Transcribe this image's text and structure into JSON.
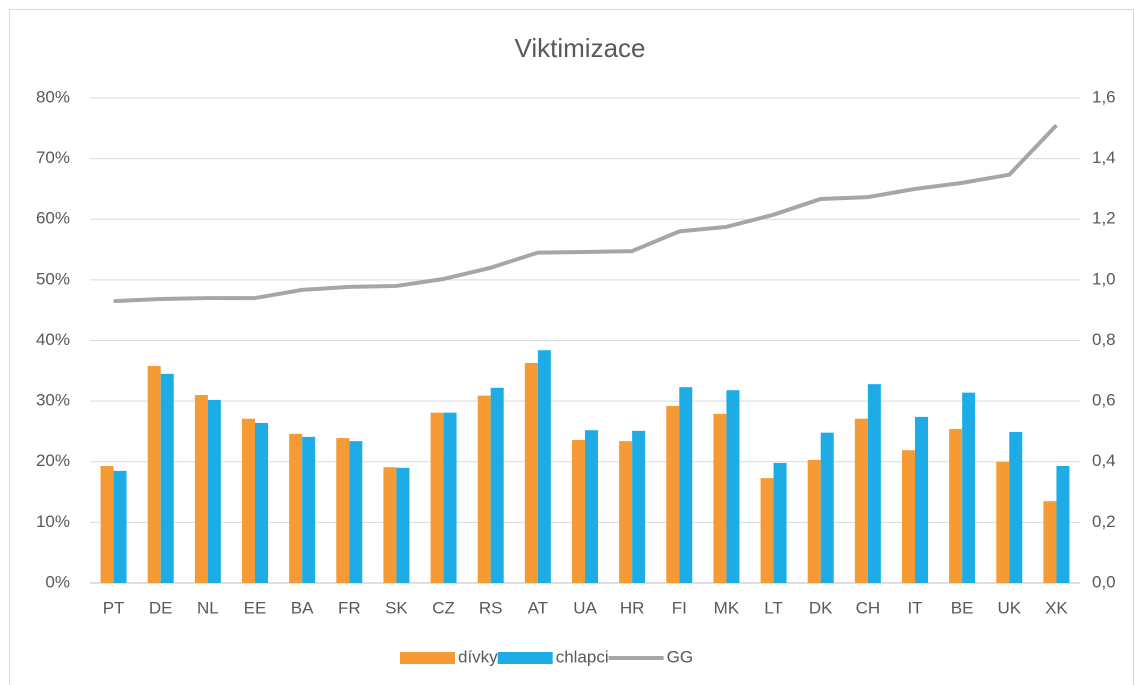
{
  "chart_data": {
    "type": "bar",
    "title": "Viktimizace",
    "categories": [
      "PT",
      "DE",
      "NL",
      "EE",
      "BA",
      "FR",
      "SK",
      "CZ",
      "RS",
      "AT",
      "UA",
      "HR",
      "FI",
      "MK",
      "LT",
      "DK",
      "CH",
      "IT",
      "BE",
      "UK",
      "XK"
    ],
    "series": [
      {
        "name": "dívky",
        "color": "#f59a35",
        "values": [
          19.3,
          35.8,
          31.0,
          27.1,
          24.6,
          23.9,
          19.1,
          28.1,
          30.9,
          36.3,
          23.6,
          23.4,
          29.2,
          27.9,
          17.3,
          20.3,
          27.1,
          21.9,
          25.4,
          20.0,
          13.5
        ]
      },
      {
        "name": "chlapci",
        "color": "#1dace6",
        "values": [
          18.5,
          34.5,
          30.2,
          26.4,
          24.1,
          23.4,
          19.0,
          28.1,
          32.2,
          38.4,
          25.2,
          25.1,
          32.3,
          31.8,
          19.8,
          24.8,
          32.8,
          27.4,
          31.4,
          24.9,
          19.3
        ]
      },
      {
        "name": "GG",
        "color": "#a6a6a6",
        "type": "line",
        "axis": "y2",
        "values": [
          0.93,
          0.937,
          0.94,
          0.94,
          0.967,
          0.977,
          0.98,
          1.003,
          1.04,
          1.09,
          1.092,
          1.095,
          1.16,
          1.175,
          1.215,
          1.267,
          1.273,
          1.3,
          1.32,
          1.347,
          1.51
        ]
      }
    ],
    "ylim": [
      0,
      80
    ],
    "yticks": [
      {
        "value": 0,
        "label": "0%"
      },
      {
        "value": 10,
        "label": "10%"
      },
      {
        "value": 20,
        "label": "20%"
      },
      {
        "value": 30,
        "label": "30%"
      },
      {
        "value": 40,
        "label": "40%"
      },
      {
        "value": 50,
        "label": "50%"
      },
      {
        "value": 60,
        "label": "60%"
      },
      {
        "value": 70,
        "label": "70%"
      },
      {
        "value": 80,
        "label": "80%"
      }
    ],
    "y2lim": [
      0,
      1.6
    ],
    "y2ticks": [
      {
        "value": 0,
        "label": "0,0"
      },
      {
        "value": 0.2,
        "label": "0,2"
      },
      {
        "value": 0.4,
        "label": "0,4"
      },
      {
        "value": 0.6,
        "label": "0,6"
      },
      {
        "value": 0.8,
        "label": "0,8"
      },
      {
        "value": 1.0,
        "label": "1,0"
      },
      {
        "value": 1.2,
        "label": "1,2"
      },
      {
        "value": 1.4,
        "label": "1,4"
      },
      {
        "value": 1.6,
        "label": "1,6"
      }
    ],
    "grid": true,
    "legend": "bottom"
  }
}
